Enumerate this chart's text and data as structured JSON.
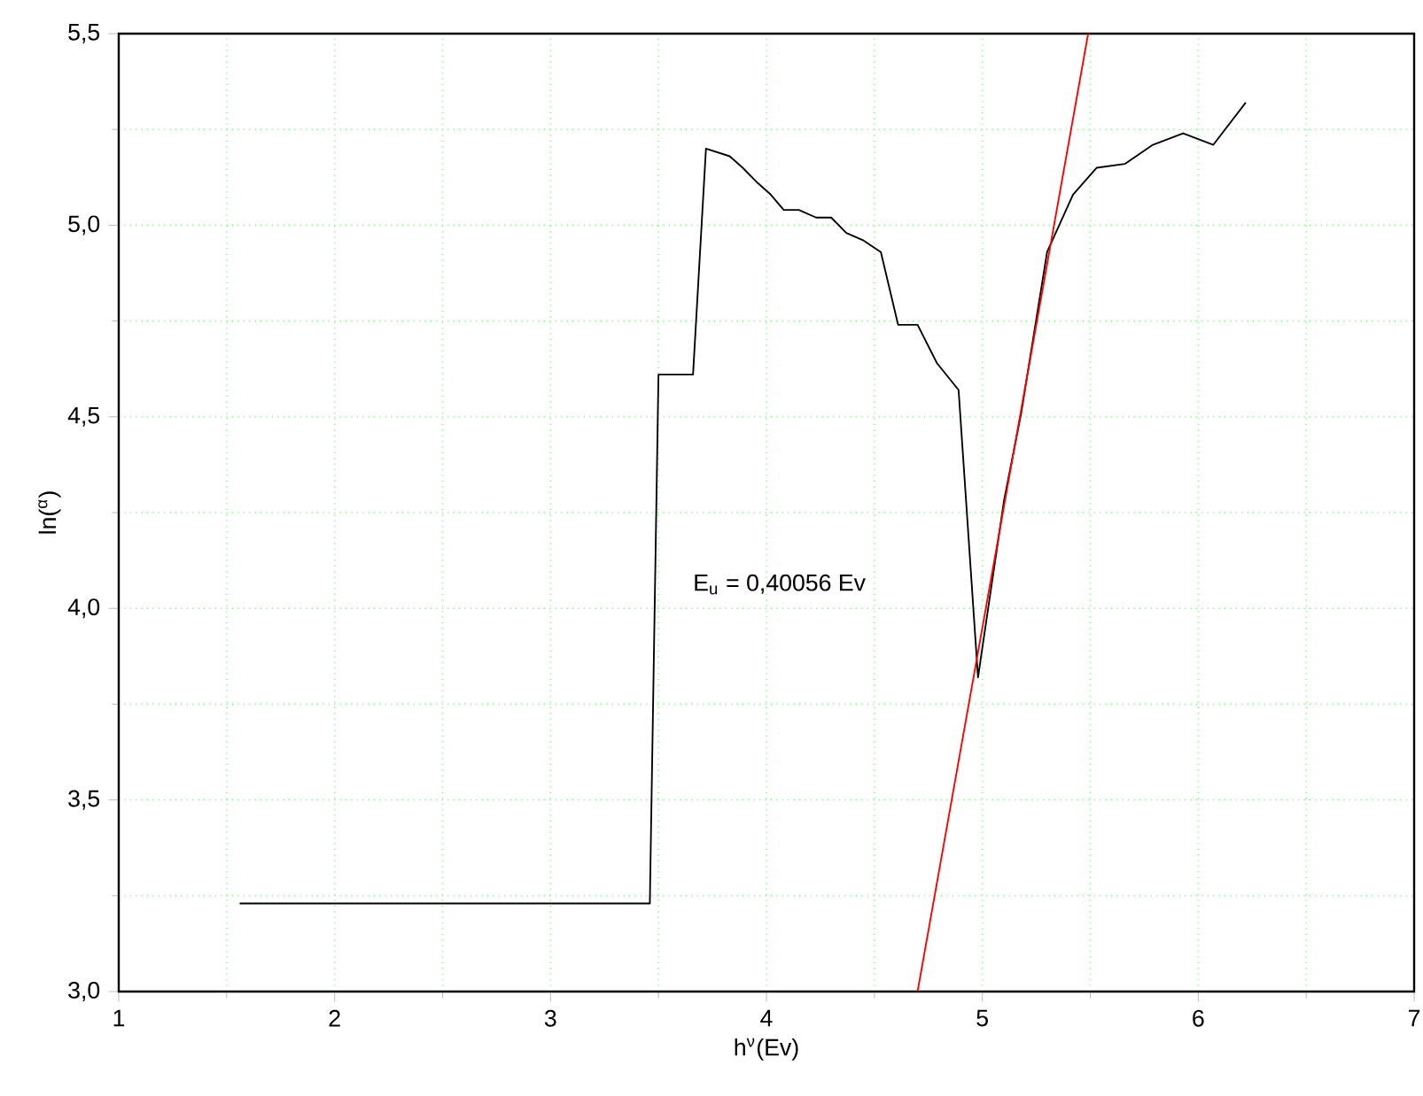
{
  "chart_data": {
    "type": "line",
    "xlabel": "h$^{ν}$(Ev)",
    "ylabel": "ln($^{α}$)",
    "annotations": [
      "E$_{u}$ = 0,40056 Ev"
    ],
    "xlim": [
      1,
      7
    ],
    "ylim": [
      3.0,
      5.5
    ],
    "xticks": [
      1,
      2,
      3,
      4,
      5,
      6,
      7
    ],
    "yticks": [
      {
        "value": 3.0,
        "label": "3,0"
      },
      {
        "value": 3.5,
        "label": "3,5"
      },
      {
        "value": 4.0,
        "label": "4,0"
      },
      {
        "value": 4.5,
        "label": "4,5"
      },
      {
        "value": 5.0,
        "label": "5,0"
      },
      {
        "value": 5.5,
        "label": "5,5"
      }
    ],
    "grid": true,
    "series": [
      {
        "color": "#000000",
        "x": [
          1.56,
          3.46,
          3.5,
          3.66,
          3.72,
          3.83,
          3.89,
          3.96,
          4.02,
          4.08,
          4.15,
          4.23,
          4.3,
          4.37,
          4.45,
          4.53,
          4.61,
          4.7,
          4.79,
          4.89,
          4.98,
          5.1,
          5.18,
          5.3,
          5.42,
          5.53,
          5.66,
          5.79,
          5.93,
          6.07,
          6.22
        ],
        "values": [
          3.23,
          3.23,
          4.61,
          4.61,
          5.2,
          5.18,
          5.15,
          5.11,
          5.08,
          5.04,
          5.04,
          5.02,
          5.02,
          4.98,
          4.96,
          4.93,
          4.74,
          4.74,
          4.64,
          4.57,
          3.82,
          4.28,
          4.51,
          4.93,
          5.08,
          5.15,
          5.16,
          5.21,
          5.24,
          5.21,
          5.32
        ]
      },
      {
        "color": "#ff0000",
        "x": [
          4.7,
          5.49
        ],
        "values": [
          3.0,
          5.5
        ]
      }
    ]
  }
}
